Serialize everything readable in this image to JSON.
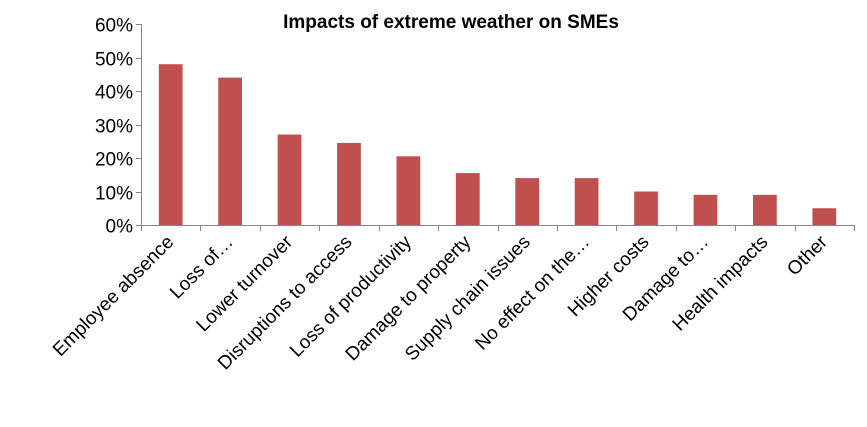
{
  "chart_data": {
    "type": "bar",
    "title": "Impacts of extreme weather on SMEs",
    "xlabel": "",
    "ylabel": "",
    "categories": [
      "Employee absence",
      "Loss of…",
      "Lower turnover",
      "Disruptions to access",
      "Loss of productivity",
      "Damage to property",
      "Supply chain issues",
      "No effect on the…",
      "Higher costs",
      "Damage to…",
      "Health impacts",
      "Other"
    ],
    "values": [
      48,
      44,
      27,
      24.5,
      20.5,
      15.5,
      14,
      14,
      10,
      9,
      9,
      5
    ],
    "ylim": [
      0,
      60
    ],
    "yticks": [
      0,
      10,
      20,
      30,
      40,
      50,
      60
    ],
    "ytick_labels": [
      "0%",
      "10%",
      "20%",
      "30%",
      "40%",
      "50%",
      "60%"
    ],
    "grid": false,
    "legend": "none",
    "bar_color": "#C0504D"
  }
}
